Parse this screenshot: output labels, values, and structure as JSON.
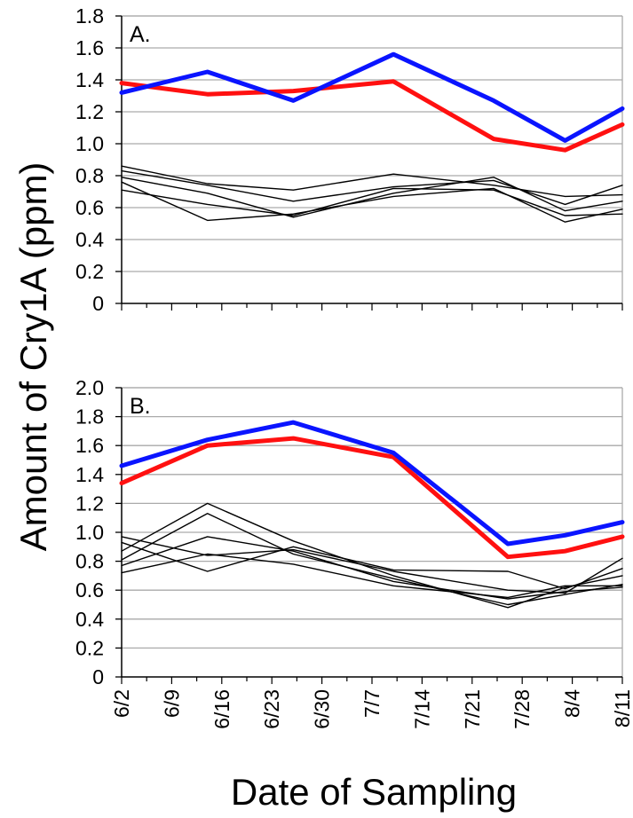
{
  "figure": {
    "ylabel": "Amount of Cry1A (ppm)",
    "xlabel": "Date of Sampling"
  },
  "colors": {
    "blue_series": "#0a14ff",
    "red_series": "#ff1010",
    "black_series": "#000000",
    "grid": "#aaaaaa"
  },
  "chart_data": [
    {
      "type": "line",
      "panel_label": "A.",
      "categories": [
        "6/2",
        "6/9",
        "6/16",
        "6/23",
        "6/30",
        "7/7",
        "7/14",
        "7/21",
        "7/28",
        "8/4",
        "8/11"
      ],
      "ylim": [
        0,
        1.8
      ],
      "yticks": [
        "0",
        "0.2",
        "0.4",
        "0.6",
        "0.8",
        "1.0",
        "1.2",
        "1.4",
        "1.6",
        "1.8"
      ],
      "grid": true,
      "series": [
        {
          "color": "blue",
          "points": [
            [
              "6/2",
              1.32
            ],
            [
              "6/14",
              1.45
            ],
            [
              "6/26",
              1.27
            ],
            [
              "7/10",
              1.56
            ],
            [
              "7/24",
              1.27
            ],
            [
              "8/3",
              1.02
            ],
            [
              "8/11",
              1.22
            ]
          ]
        },
        {
          "color": "red",
          "points": [
            [
              "6/2",
              1.38
            ],
            [
              "6/14",
              1.31
            ],
            [
              "6/26",
              1.33
            ],
            [
              "7/10",
              1.39
            ],
            [
              "7/24",
              1.03
            ],
            [
              "8/3",
              0.96
            ],
            [
              "8/11",
              1.12
            ]
          ]
        },
        {
          "color": "black",
          "points": [
            [
              "6/2",
              0.86
            ],
            [
              "6/14",
              0.75
            ],
            [
              "6/26",
              0.71
            ],
            [
              "7/10",
              0.81
            ],
            [
              "7/24",
              0.74
            ],
            [
              "8/3",
              0.67
            ],
            [
              "8/11",
              0.68
            ]
          ]
        },
        {
          "color": "black",
          "points": [
            [
              "6/2",
              0.83
            ],
            [
              "6/14",
              0.74
            ],
            [
              "6/26",
              0.64
            ],
            [
              "7/10",
              0.73
            ],
            [
              "7/24",
              0.77
            ],
            [
              "8/3",
              0.62
            ],
            [
              "8/11",
              0.74
            ]
          ]
        },
        {
          "color": "black",
          "points": [
            [
              "6/2",
              0.79
            ],
            [
              "6/14",
              0.69
            ],
            [
              "6/26",
              0.54
            ],
            [
              "7/10",
              0.69
            ],
            [
              "7/24",
              0.79
            ],
            [
              "8/3",
              0.58
            ],
            [
              "8/11",
              0.64
            ]
          ]
        },
        {
          "color": "black",
          "points": [
            [
              "6/2",
              0.76
            ],
            [
              "6/14",
              0.52
            ],
            [
              "6/26",
              0.56
            ],
            [
              "7/10",
              0.67
            ],
            [
              "7/24",
              0.72
            ],
            [
              "8/3",
              0.51
            ],
            [
              "8/11",
              0.59
            ]
          ]
        },
        {
          "color": "black",
          "points": [
            [
              "6/2",
              0.71
            ],
            [
              "6/14",
              0.62
            ],
            [
              "6/26",
              0.55
            ],
            [
              "7/10",
              0.72
            ],
            [
              "7/24",
              0.71
            ],
            [
              "8/3",
              0.55
            ],
            [
              "8/11",
              0.56
            ]
          ]
        }
      ]
    },
    {
      "type": "line",
      "panel_label": "B.",
      "categories": [
        "6/2",
        "6/9",
        "6/16",
        "6/23",
        "6/30",
        "7/7",
        "7/14",
        "7/21",
        "7/28",
        "8/4",
        "8/11"
      ],
      "ylim": [
        0,
        2.0
      ],
      "yticks": [
        "0",
        "0.2",
        "0.4",
        "0.6",
        "0.8",
        "1.0",
        "1.2",
        "1.4",
        "1.6",
        "1.8",
        "2.0"
      ],
      "grid": true,
      "series": [
        {
          "color": "blue",
          "points": [
            [
              "6/2",
              1.46
            ],
            [
              "6/14",
              1.64
            ],
            [
              "6/26",
              1.76
            ],
            [
              "7/10",
              1.55
            ],
            [
              "7/26",
              0.92
            ],
            [
              "8/3",
              0.98
            ],
            [
              "8/11",
              1.07
            ]
          ]
        },
        {
          "color": "red",
          "points": [
            [
              "6/2",
              1.34
            ],
            [
              "6/14",
              1.6
            ],
            [
              "6/26",
              1.65
            ],
            [
              "7/10",
              1.52
            ],
            [
              "7/26",
              0.83
            ],
            [
              "8/3",
              0.87
            ],
            [
              "8/11",
              0.97
            ]
          ]
        },
        {
          "color": "black",
          "points": [
            [
              "6/2",
              0.97
            ],
            [
              "6/14",
              0.84
            ],
            [
              "6/26",
              0.88
            ],
            [
              "7/10",
              0.73
            ],
            [
              "7/26",
              0.6
            ],
            [
              "8/3",
              0.58
            ],
            [
              "8/11",
              0.82
            ]
          ]
        },
        {
          "color": "black",
          "points": [
            [
              "6/2",
              0.93
            ],
            [
              "6/14",
              0.73
            ],
            [
              "6/26",
              0.9
            ],
            [
              "7/10",
              0.74
            ],
            [
              "7/26",
              0.73
            ],
            [
              "8/3",
              0.61
            ],
            [
              "8/11",
              0.75
            ]
          ]
        },
        {
          "color": "black",
          "points": [
            [
              "6/2",
              0.87
            ],
            [
              "6/14",
              1.2
            ],
            [
              "6/26",
              0.94
            ],
            [
              "7/10",
              0.7
            ],
            [
              "7/26",
              0.48
            ],
            [
              "8/3",
              0.62
            ],
            [
              "8/11",
              0.7
            ]
          ]
        },
        {
          "color": "black",
          "points": [
            [
              "6/2",
              0.81
            ],
            [
              "6/14",
              1.13
            ],
            [
              "6/26",
              0.85
            ],
            [
              "7/10",
              0.68
            ],
            [
              "7/26",
              0.5
            ],
            [
              "8/3",
              0.57
            ],
            [
              "8/11",
              0.64
            ]
          ]
        },
        {
          "color": "black",
          "points": [
            [
              "6/2",
              0.77
            ],
            [
              "6/14",
              0.97
            ],
            [
              "6/26",
              0.87
            ],
            [
              "7/10",
              0.66
            ],
            [
              "7/26",
              0.54
            ],
            [
              "8/3",
              0.59
            ],
            [
              "8/11",
              0.62
            ]
          ]
        },
        {
          "color": "black",
          "points": [
            [
              "6/2",
              0.72
            ],
            [
              "6/14",
              0.85
            ],
            [
              "6/26",
              0.78
            ],
            [
              "7/10",
              0.63
            ],
            [
              "7/26",
              0.55
            ],
            [
              "8/3",
              0.63
            ],
            [
              "8/11",
              0.63
            ]
          ]
        }
      ]
    }
  ]
}
